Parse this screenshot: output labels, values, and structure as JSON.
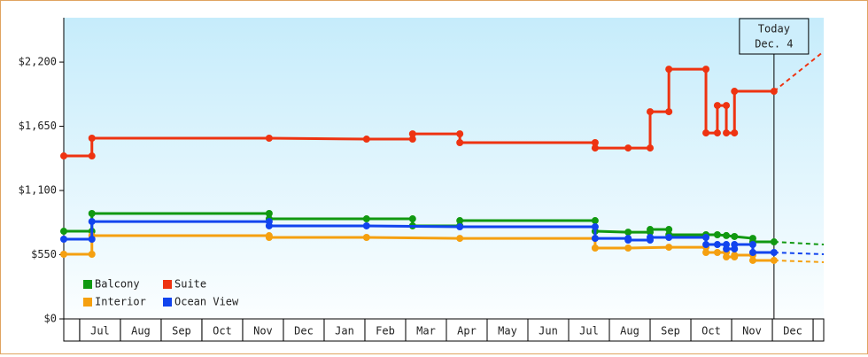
{
  "chart_data": {
    "type": "line",
    "xlim": [
      -0.39,
      18.26
    ],
    "xticks": [
      {
        "value": 0.5,
        "label": "Jul"
      },
      {
        "value": 1.5,
        "label": "Aug"
      },
      {
        "value": 2.5,
        "label": "Sep"
      },
      {
        "value": 3.5,
        "label": "Oct"
      },
      {
        "value": 4.5,
        "label": "Nov"
      },
      {
        "value": 5.5,
        "label": "Dec"
      },
      {
        "value": 6.5,
        "label": "Jan"
      },
      {
        "value": 7.5,
        "label": "Feb"
      },
      {
        "value": 8.5,
        "label": "Mar"
      },
      {
        "value": 9.5,
        "label": "Apr"
      },
      {
        "value": 10.5,
        "label": "May"
      },
      {
        "value": 11.5,
        "label": "Jun"
      },
      {
        "value": 12.5,
        "label": "Jul"
      },
      {
        "value": 13.5,
        "label": "Aug"
      },
      {
        "value": 14.5,
        "label": "Sep"
      },
      {
        "value": 15.5,
        "label": "Oct"
      },
      {
        "value": 16.5,
        "label": "Nov"
      },
      {
        "value": 17.5,
        "label": "Dec"
      }
    ],
    "ylim": [
      0,
      2580
    ],
    "yticks": [
      {
        "value": 0,
        "label": "$0"
      },
      {
        "value": 550,
        "label": "$550"
      },
      {
        "value": 1100,
        "label": "$1,100"
      },
      {
        "value": 1650,
        "label": "$1,650"
      },
      {
        "value": 2200,
        "label": "$2,200"
      }
    ],
    "today": {
      "x": 17.04,
      "label": "Today",
      "date": "Dec. 4"
    },
    "legend": "lower left",
    "series": [
      {
        "name": "Balcony",
        "color": "#119911",
        "x": [
          -0.39,
          0.3,
          0.3,
          4.65,
          4.65,
          7.04,
          8.17,
          8.17,
          9.33,
          9.33,
          12.65,
          12.65,
          13.46,
          14.0,
          14.0,
          14.46,
          14.46,
          15.37,
          15.65,
          15.87,
          16.07,
          16.52,
          16.52,
          17.04
        ],
        "values": [
          751,
          751,
          903,
          903,
          857,
          857,
          857,
          797,
          797,
          842,
          842,
          751,
          743,
          743,
          766,
          766,
          721,
          721,
          721,
          714,
          706,
          690,
          660,
          660
        ],
        "projection": {
          "x": [
            17.04,
            18.26
          ],
          "values": [
            660,
            637
          ]
        }
      },
      {
        "name": "Suite",
        "color": "#ee3311",
        "x": [
          -0.39,
          0.3,
          0.3,
          4.65,
          7.04,
          8.17,
          8.17,
          9.33,
          9.33,
          12.65,
          12.65,
          13.46,
          14.0,
          14.0,
          14.46,
          14.46,
          15.37,
          15.37,
          15.65,
          15.65,
          15.87,
          15.87,
          16.07,
          16.07,
          17.04
        ],
        "values": [
          1396,
          1396,
          1548,
          1548,
          1540,
          1540,
          1585,
          1585,
          1510,
          1510,
          1464,
          1464,
          1464,
          1775,
          1775,
          2139,
          2139,
          1593,
          1593,
          1828,
          1828,
          1593,
          1593,
          1950,
          1950
        ],
        "projection": {
          "x": [
            17.04,
            18.26
          ],
          "values": [
            1950,
            2291
          ]
        }
      },
      {
        "name": "Interior",
        "color": "#f5a010",
        "x": [
          -0.39,
          0.3,
          0.3,
          4.65,
          4.65,
          7.04,
          9.33,
          12.65,
          12.65,
          13.46,
          14.46,
          15.37,
          15.37,
          15.65,
          15.87,
          15.87,
          16.07,
          16.07,
          16.52,
          16.52,
          17.04
        ],
        "values": [
          554,
          554,
          713,
          713,
          698,
          698,
          690,
          690,
          607,
          607,
          614,
          614,
          569,
          569,
          569,
          531,
          531,
          546,
          546,
          501,
          501
        ],
        "projection": {
          "x": [
            17.04,
            18.26
          ],
          "values": [
            501,
            486
          ]
        }
      },
      {
        "name": "Ocean View",
        "color": "#1144ee",
        "x": [
          -0.39,
          0.3,
          0.3,
          4.65,
          4.65,
          7.04,
          9.33,
          12.65,
          12.65,
          13.46,
          13.46,
          14.0,
          14.0,
          14.46,
          15.37,
          15.37,
          15.65,
          15.87,
          15.87,
          16.07,
          16.07,
          16.52,
          16.52,
          17.04
        ],
        "values": [
          683,
          683,
          834,
          834,
          797,
          797,
          789,
          789,
          690,
          690,
          675,
          675,
          698,
          698,
          698,
          637,
          637,
          637,
          599,
          599,
          637,
          637,
          569,
          569
        ],
        "projection": {
          "x": [
            17.04,
            18.26
          ],
          "values": [
            569,
            554
          ]
        }
      }
    ]
  }
}
